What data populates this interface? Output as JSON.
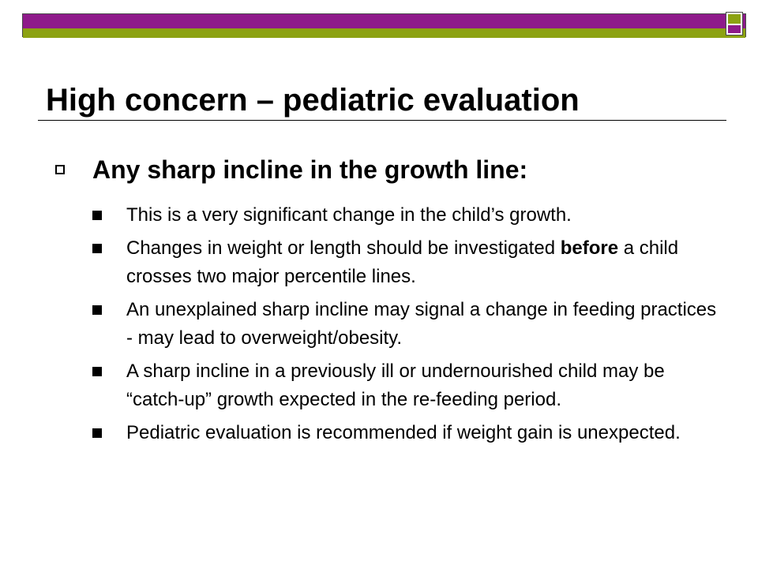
{
  "title": "High concern – pediatric evaluation",
  "bullet": {
    "heading": "Any sharp incline in the growth line:"
  },
  "sub_bullets": [
    {
      "text": "This is a very significant change in the child’s growth."
    },
    {
      "pre": "Changes in weight or length should be investigated ",
      "bold": "before",
      "post": " a child crosses two major percentile lines."
    },
    {
      "text": "An unexplained sharp incline may signal a change in feeding practices - may lead to overweight/obesity."
    },
    {
      "text": "A sharp incline in a previously ill or undernourished child may be “catch-up” growth expected in the re-feeding period."
    },
    {
      "text": "Pediatric evaluation is recommended if weight gain is unexpected."
    }
  ],
  "colors": {
    "purple": "#8e1a8a",
    "olive": "#8ca212",
    "text": "#000000"
  }
}
